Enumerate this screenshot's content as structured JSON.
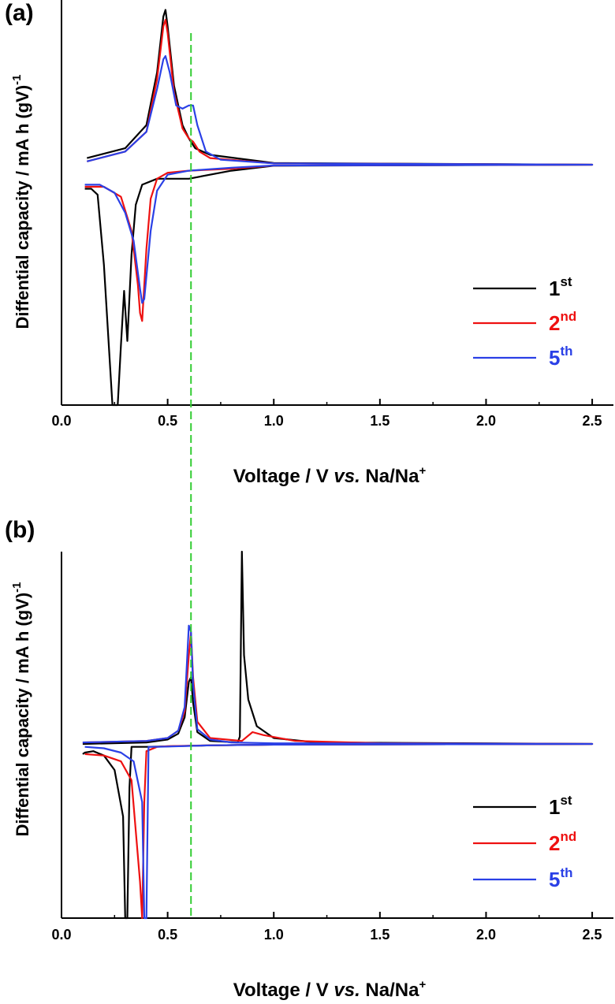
{
  "colors": {
    "cycle1": "#000000",
    "cycle2": "#ee1111",
    "cycle5": "#2a40e6",
    "guide": "#33cc33"
  },
  "guide_line_x": 0.61,
  "chart_data": [
    {
      "type": "line",
      "panel_label": "(a)",
      "xlabel": {
        "main": "Voltage / V ",
        "italic": "vs.",
        "rest": " Na/Na",
        "sup": "+"
      },
      "ylabel": {
        "main": "Diffential capacity / mA h (gV)",
        "sup": "-1"
      },
      "xlim": [
        0.0,
        2.6
      ],
      "ylim": [
        -1.2,
        0.5
      ],
      "xticks": [
        "0.0",
        "0.5",
        "1.0",
        "1.5",
        "2.0",
        "2.5"
      ],
      "xtick_values": [
        0.0,
        0.5,
        1.0,
        1.5,
        2.0,
        2.5
      ],
      "legend": [
        {
          "base": "1",
          "sup": "st",
          "color": "#000000"
        },
        {
          "base": "2",
          "sup": "nd",
          "color": "#ee1111"
        },
        {
          "base": "5",
          "sup": "th",
          "color": "#2a40e6"
        }
      ],
      "legend_position": "right",
      "series": [
        {
          "color": "#000000",
          "charge": [
            [
              0.12,
              0.02
            ],
            [
              0.3,
              0.05
            ],
            [
              0.4,
              0.12
            ],
            [
              0.45,
              0.28
            ],
            [
              0.48,
              0.45
            ],
            [
              0.49,
              0.47
            ],
            [
              0.5,
              0.42
            ],
            [
              0.53,
              0.24
            ],
            [
              0.57,
              0.12
            ],
            [
              0.6,
              0.08
            ],
            [
              0.63,
              0.05
            ],
            [
              0.7,
              0.03
            ],
            [
              1.0,
              0.005
            ],
            [
              2.5,
              0.0
            ]
          ],
          "discharge": [
            [
              2.5,
              0.0
            ],
            [
              1.0,
              -0.005
            ],
            [
              0.8,
              -0.03
            ],
            [
              0.6,
              -0.07
            ],
            [
              0.45,
              -0.07
            ],
            [
              0.38,
              -0.1
            ],
            [
              0.35,
              -0.2
            ],
            [
              0.33,
              -0.45
            ],
            [
              0.31,
              -0.88
            ],
            [
              0.295,
              -0.63
            ],
            [
              0.28,
              -0.9
            ],
            [
              0.265,
              -1.2
            ],
            [
              0.24,
              -1.2
            ],
            [
              0.2,
              -0.5
            ],
            [
              0.17,
              -0.15
            ],
            [
              0.14,
              -0.12
            ],
            [
              0.11,
              -0.12
            ]
          ]
        },
        {
          "color": "#ee1111",
          "charge": [
            [
              0.12,
              0.01
            ],
            [
              0.3,
              0.04
            ],
            [
              0.4,
              0.1
            ],
            [
              0.45,
              0.26
            ],
            [
              0.48,
              0.42
            ],
            [
              0.49,
              0.44
            ],
            [
              0.5,
              0.4
            ],
            [
              0.53,
              0.22
            ],
            [
              0.57,
              0.11
            ],
            [
              0.6,
              0.08
            ],
            [
              0.62,
              0.07
            ],
            [
              0.65,
              0.04
            ],
            [
              0.7,
              0.02
            ],
            [
              1.0,
              0.004
            ],
            [
              2.5,
              0.0
            ]
          ],
          "discharge": [
            [
              2.5,
              0.0
            ],
            [
              1.0,
              -0.004
            ],
            [
              0.8,
              -0.02
            ],
            [
              0.6,
              -0.03
            ],
            [
              0.5,
              -0.04
            ],
            [
              0.45,
              -0.07
            ],
            [
              0.42,
              -0.17
            ],
            [
              0.4,
              -0.42
            ],
            [
              0.38,
              -0.78
            ],
            [
              0.37,
              -0.74
            ],
            [
              0.36,
              -0.6
            ],
            [
              0.33,
              -0.33
            ],
            [
              0.28,
              -0.16
            ],
            [
              0.2,
              -0.11
            ],
            [
              0.11,
              -0.11
            ]
          ]
        },
        {
          "color": "#2a40e6",
          "charge": [
            [
              0.12,
              0.01
            ],
            [
              0.3,
              0.04
            ],
            [
              0.4,
              0.1
            ],
            [
              0.45,
              0.23
            ],
            [
              0.48,
              0.32
            ],
            [
              0.49,
              0.33
            ],
            [
              0.51,
              0.28
            ],
            [
              0.54,
              0.18
            ],
            [
              0.57,
              0.17
            ],
            [
              0.6,
              0.18
            ],
            [
              0.62,
              0.18
            ],
            [
              0.64,
              0.12
            ],
            [
              0.68,
              0.04
            ],
            [
              0.75,
              0.015
            ],
            [
              1.0,
              0.004
            ],
            [
              2.5,
              0.0
            ]
          ],
          "discharge": [
            [
              2.5,
              0.0
            ],
            [
              1.0,
              -0.004
            ],
            [
              0.8,
              -0.015
            ],
            [
              0.6,
              -0.03
            ],
            [
              0.5,
              -0.05
            ],
            [
              0.45,
              -0.13
            ],
            [
              0.42,
              -0.33
            ],
            [
              0.39,
              -0.67
            ],
            [
              0.38,
              -0.69
            ],
            [
              0.37,
              -0.62
            ],
            [
              0.34,
              -0.38
            ],
            [
              0.3,
              -0.24
            ],
            [
              0.25,
              -0.14
            ],
            [
              0.18,
              -0.1
            ],
            [
              0.11,
              -0.1
            ]
          ]
        }
      ]
    },
    {
      "type": "line",
      "panel_label": "(b)",
      "xlabel": {
        "main": "Voltage / V ",
        "italic": "vs.",
        "rest": " Na/Na",
        "sup": "+"
      },
      "ylabel": {
        "main": "Diffential capacity / mA h (gV)",
        "sup": "-1"
      },
      "xlim": [
        0.0,
        2.6
      ],
      "ylim": [
        -1.2,
        1.3
      ],
      "xticks": [
        "0.0",
        "0.5",
        "1.0",
        "1.5",
        "2.0",
        "2.5"
      ],
      "xtick_values": [
        0.0,
        0.5,
        1.0,
        1.5,
        2.0,
        2.5
      ],
      "legend": [
        {
          "base": "1",
          "sup": "st",
          "color": "#000000"
        },
        {
          "base": "2",
          "sup": "nd",
          "color": "#ee1111"
        },
        {
          "base": "5",
          "sup": "th",
          "color": "#2a40e6"
        }
      ],
      "legend_position": "bottom-right",
      "series": [
        {
          "color": "#000000",
          "charge": [
            [
              0.1,
              0.0
            ],
            [
              0.4,
              0.01
            ],
            [
              0.5,
              0.03
            ],
            [
              0.55,
              0.07
            ],
            [
              0.58,
              0.18
            ],
            [
              0.6,
              0.42
            ],
            [
              0.61,
              0.45
            ],
            [
              0.62,
              0.28
            ],
            [
              0.64,
              0.08
            ],
            [
              0.7,
              0.02
            ],
            [
              0.83,
              0.01
            ],
            [
              0.84,
              0.05
            ],
            [
              0.85,
              1.3
            ],
            [
              0.86,
              0.6
            ],
            [
              0.88,
              0.3
            ],
            [
              0.92,
              0.12
            ],
            [
              1.0,
              0.04
            ],
            [
              1.2,
              0.01
            ],
            [
              2.5,
              0.0
            ]
          ],
          "discharge": [
            [
              2.5,
              0.0
            ],
            [
              1.0,
              -0.005
            ],
            [
              0.7,
              -0.01
            ],
            [
              0.4,
              -0.02
            ],
            [
              0.33,
              -0.02
            ],
            [
              0.32,
              -0.3
            ],
            [
              0.31,
              -1.2
            ],
            [
              0.3,
              -1.2
            ],
            [
              0.29,
              -0.5
            ],
            [
              0.25,
              -0.18
            ],
            [
              0.2,
              -0.08
            ],
            [
              0.15,
              -0.05
            ],
            [
              0.11,
              -0.06
            ],
            [
              0.1,
              -0.07
            ]
          ]
        },
        {
          "color": "#ee1111",
          "charge": [
            [
              0.1,
              0.01
            ],
            [
              0.4,
              0.02
            ],
            [
              0.5,
              0.04
            ],
            [
              0.55,
              0.09
            ],
            [
              0.58,
              0.22
            ],
            [
              0.6,
              0.6
            ],
            [
              0.61,
              0.75
            ],
            [
              0.62,
              0.45
            ],
            [
              0.64,
              0.15
            ],
            [
              0.7,
              0.04
            ],
            [
              0.85,
              0.02
            ],
            [
              0.9,
              0.08
            ],
            [
              0.95,
              0.06
            ],
            [
              1.1,
              0.02
            ],
            [
              1.5,
              0.005
            ],
            [
              2.5,
              0.0
            ]
          ],
          "discharge": [
            [
              2.5,
              0.0
            ],
            [
              1.0,
              -0.005
            ],
            [
              0.7,
              -0.01
            ],
            [
              0.5,
              -0.015
            ],
            [
              0.45,
              -0.02
            ],
            [
              0.4,
              -0.05
            ],
            [
              0.39,
              -0.4
            ],
            [
              0.38,
              -1.2
            ],
            [
              0.37,
              -0.95
            ],
            [
              0.33,
              -0.25
            ],
            [
              0.28,
              -0.12
            ],
            [
              0.2,
              -0.08
            ],
            [
              0.11,
              -0.07
            ]
          ]
        },
        {
          "color": "#2a40e6",
          "charge": [
            [
              0.1,
              0.01
            ],
            [
              0.4,
              0.02
            ],
            [
              0.5,
              0.04
            ],
            [
              0.55,
              0.09
            ],
            [
              0.58,
              0.25
            ],
            [
              0.6,
              0.8
            ],
            [
              0.61,
              0.76
            ],
            [
              0.62,
              0.4
            ],
            [
              0.64,
              0.1
            ],
            [
              0.7,
              0.03
            ],
            [
              0.8,
              0.01
            ],
            [
              1.0,
              0.004
            ],
            [
              2.5,
              0.0
            ]
          ],
          "discharge": [
            [
              2.5,
              0.0
            ],
            [
              1.0,
              -0.005
            ],
            [
              0.7,
              -0.01
            ],
            [
              0.45,
              -0.02
            ],
            [
              0.41,
              -0.02
            ],
            [
              0.4,
              -1.2
            ],
            [
              0.39,
              -1.2
            ],
            [
              0.38,
              -0.4
            ],
            [
              0.34,
              -0.12
            ],
            [
              0.28,
              -0.06
            ],
            [
              0.2,
              -0.03
            ],
            [
              0.11,
              -0.02
            ]
          ]
        }
      ]
    }
  ]
}
